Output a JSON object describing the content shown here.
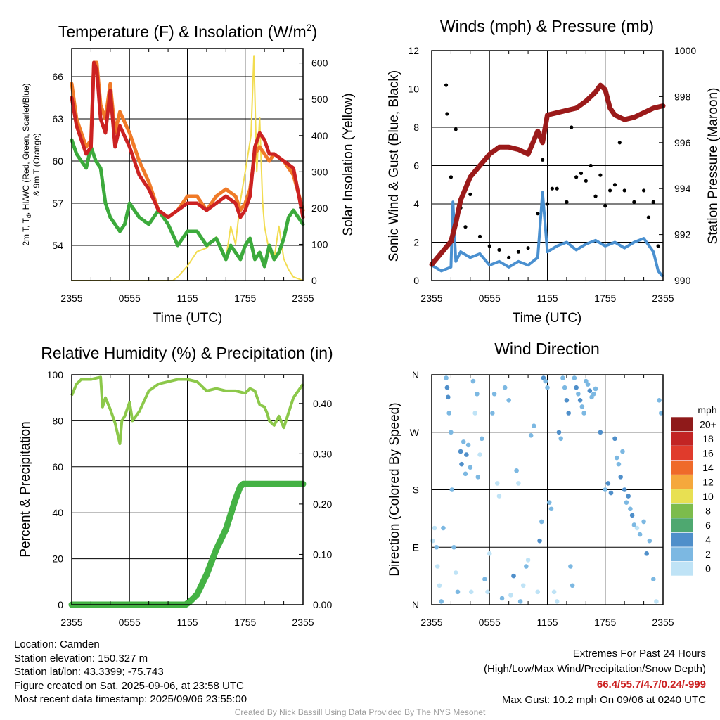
{
  "panels": {
    "temperature": {
      "title": "Temperature (F) & Insolation (W/m",
      "title_sup": "2",
      "title_end": ")",
      "ylabel_line1": "2m T, T",
      "ylabel_sub": "d",
      "ylabel_line1_end": ", HI/WC (Red, Green, Scarlet/Blue)",
      "ylabel_line2": "& 9m T (Orange)",
      "y2label": "Solar Insolation (Yellow)",
      "xlabel": "Time (UTC)"
    },
    "winds": {
      "title": "Winds (mph) & Pressure (mb)",
      "ylabel": "Sonic Wind & Gust (Blue, Black)",
      "y2label": "Station Pressure (Maroon)",
      "xlabel": "Time (UTC)"
    },
    "humidity": {
      "title": "Relative Humidity (%) & Precipitation (in)",
      "ylabel": "Percent & Precipitation"
    },
    "direction": {
      "title": "Wind Direction",
      "ylabel": "Direction (Colored By Speed)",
      "legend_title": "mph"
    }
  },
  "chart_data": [
    {
      "type": "line",
      "title": "Temperature (F) & Insolation (W/m2)",
      "xlabel": "Time (UTC)",
      "ylabel": "2m T, Td, HI/WC (Red, Green, Scarlet/Blue) & 9m T (Orange)",
      "y2label": "Solar Insolation (Yellow)",
      "x_ticks": [
        "2355",
        "0555",
        "1155",
        "1755",
        "2355"
      ],
      "y_ticks": [
        "54",
        "57",
        "60",
        "63",
        "66"
      ],
      "y2_ticks": [
        "0",
        "100",
        "200",
        "300",
        "400",
        "500",
        "600"
      ],
      "xlim_hours": [
        0,
        24
      ],
      "ylim": [
        51.5,
        68
      ],
      "y2lim": [
        0,
        640
      ],
      "grid": true,
      "series": [
        {
          "name": "2m T",
          "color": "#cc2222",
          "axis": "left",
          "hours": [
            0,
            0.5,
            1,
            1.5,
            2,
            2.3,
            2.6,
            3,
            3.5,
            4,
            4.5,
            5,
            6,
            7,
            8,
            9,
            10,
            11,
            12,
            13,
            14,
            15,
            16,
            17,
            17.5,
            18,
            18.5,
            19,
            19.5,
            20,
            20.5,
            21,
            22,
            23,
            24
          ],
          "values": [
            64.5,
            62.5,
            61.5,
            60.5,
            61,
            67,
            66.5,
            63,
            62,
            65,
            61,
            62.5,
            61,
            59,
            58,
            56.5,
            56,
            56.5,
            57,
            57,
            56.5,
            57,
            57.5,
            57,
            56,
            56.5,
            57.5,
            61,
            62,
            61.5,
            60.5,
            60.5,
            60,
            59.5,
            56
          ]
        },
        {
          "name": "9m T",
          "color": "#f07a28",
          "axis": "left",
          "hours": [
            0,
            0.5,
            1,
            1.5,
            2,
            2.3,
            2.6,
            3,
            3.5,
            4,
            4.5,
            5,
            6,
            7,
            8,
            9,
            10,
            11,
            12,
            13,
            14,
            15,
            16,
            17,
            17.5,
            18,
            18.5,
            19,
            19.5,
            20,
            20.5,
            21,
            22,
            23,
            24
          ],
          "values": [
            65.5,
            63,
            62,
            61,
            61.5,
            67,
            67,
            64,
            63,
            65.5,
            62,
            63.5,
            62,
            60,
            58.5,
            56.5,
            56,
            56.5,
            57.5,
            57.5,
            56.5,
            57.5,
            58,
            57.5,
            56.5,
            57,
            58,
            60.5,
            61,
            60.5,
            60,
            60.5,
            60,
            59,
            56.5
          ]
        },
        {
          "name": "Td",
          "color": "#3caa3c",
          "axis": "left",
          "hours": [
            0,
            0.5,
            1,
            1.5,
            2,
            2.5,
            3,
            3.5,
            4,
            4.5,
            5,
            5.5,
            6,
            6.5,
            7,
            8,
            9,
            10,
            11,
            12,
            13,
            14,
            15,
            16,
            16.5,
            17,
            17.5,
            18,
            18.5,
            19,
            19.5,
            20,
            20.5,
            21,
            21.5,
            22,
            22.5,
            23,
            24
          ],
          "values": [
            61.5,
            60.5,
            60,
            59.5,
            61,
            60,
            59.5,
            57,
            56,
            55.5,
            55,
            55.5,
            57,
            56.5,
            56,
            55.5,
            56.5,
            55.5,
            54,
            55,
            55,
            54,
            54.5,
            53,
            54,
            53.5,
            53,
            54,
            54.5,
            53,
            53.5,
            52.5,
            54,
            53,
            53.5,
            54.5,
            56,
            56.5,
            55.5
          ]
        },
        {
          "name": "Solar Insolation",
          "color": "#f2dc50",
          "axis": "right",
          "hours": [
            0,
            10.5,
            11,
            12,
            13,
            14,
            15,
            16,
            16.5,
            17,
            17.5,
            18,
            18.3,
            18.6,
            18.9,
            19.2,
            19.5,
            19.8,
            20,
            20.5,
            21,
            21.5,
            22,
            22.5,
            23,
            24
          ],
          "values": [
            0,
            0,
            10,
            40,
            80,
            90,
            120,
            60,
            150,
            100,
            220,
            300,
            350,
            400,
            620,
            300,
            450,
            220,
            150,
            80,
            60,
            150,
            60,
            30,
            10,
            0
          ]
        }
      ]
    },
    {
      "type": "line",
      "title": "Winds (mph) & Pressure (mb)",
      "xlabel": "Time (UTC)",
      "ylabel": "Sonic Wind & Gust (Blue, Black)",
      "y2label": "Station Pressure (Maroon)",
      "x_ticks": [
        "2355",
        "0555",
        "1155",
        "1755",
        "2355"
      ],
      "y_ticks": [
        "0",
        "2",
        "4",
        "6",
        "8",
        "10",
        "12"
      ],
      "y2_ticks": [
        "990",
        "992",
        "994",
        "996",
        "998",
        "1000"
      ],
      "ylim": [
        0,
        12
      ],
      "y2lim": [
        990,
        1000
      ],
      "grid": true,
      "series": [
        {
          "name": "Station Pressure",
          "color": "#9b1a1a",
          "axis": "right",
          "hours": [
            0,
            1,
            2,
            2.5,
            3,
            4,
            5,
            6,
            7,
            8,
            9,
            10,
            11,
            11.5,
            12,
            13,
            14,
            15,
            16,
            17,
            17.5,
            18,
            18.5,
            19,
            20,
            21,
            22,
            23,
            24
          ],
          "values": [
            990.7,
            991.2,
            991.7,
            992.5,
            993.5,
            994.5,
            995,
            995.5,
            995.8,
            995.8,
            995.7,
            995.5,
            996.5,
            996,
            997.2,
            997.3,
            997.4,
            997.5,
            997.8,
            998.2,
            998.5,
            998.3,
            997.5,
            997.2,
            997,
            997.1,
            997.3,
            997.5,
            997.6
          ]
        },
        {
          "name": "Sonic Wind",
          "color": "#4a90d0",
          "axis": "left",
          "hours": [
            0,
            1,
            2,
            2.2,
            2.5,
            3,
            4,
            5,
            6,
            7,
            8,
            9,
            10,
            11,
            11.5,
            12,
            13,
            14,
            15,
            16,
            17,
            18,
            19,
            20,
            21,
            22,
            23,
            23.5,
            24
          ],
          "values": [
            0.8,
            0.5,
            0.7,
            4.1,
            1,
            1.5,
            1.2,
            1.4,
            0.8,
            1,
            0.7,
            1,
            0.8,
            1.2,
            4.6,
            1.5,
            1.8,
            2,
            1.6,
            1.9,
            2.1,
            1.8,
            2,
            1.7,
            2,
            2.2,
            1.5,
            0.5,
            0.2
          ]
        },
        {
          "name": "Gust",
          "color": "#000000",
          "axis": "left",
          "style": "markers",
          "hours": [
            1.5,
            1.6,
            2.0,
            2.5,
            3.0,
            3.5,
            4.0,
            5.0,
            6.0,
            7.0,
            8.0,
            9.0,
            10.0,
            11.0,
            11.5,
            12.0,
            12.5,
            13.0,
            14.0,
            14.5,
            15.0,
            15.5,
            16.0,
            16.5,
            17.0,
            17.5,
            18.0,
            18.5,
            19.0,
            19.5,
            20.0,
            21.0,
            22.0,
            22.5,
            23.0,
            23.5
          ],
          "values": [
            10.2,
            8.7,
            5.4,
            7.9,
            3.8,
            2.8,
            4.5,
            2.3,
            1.8,
            1.6,
            1.2,
            1.5,
            1.7,
            3.5,
            6.3,
            4.0,
            4.8,
            4.8,
            4.1,
            8.0,
            5.4,
            5.6,
            5.2,
            6.0,
            4.4,
            5.5,
            3.9,
            4.7,
            5.0,
            7.2,
            4.7,
            4.1,
            4.7,
            3.3,
            4.1,
            1.8
          ]
        }
      ]
    },
    {
      "type": "line",
      "title": "Relative Humidity (%) & Precipitation (in)",
      "ylabel": "Percent & Precipitation",
      "x_ticks": [
        "2355",
        "0555",
        "1155",
        "1755",
        "2355"
      ],
      "y_ticks": [
        "0",
        "20",
        "40",
        "60",
        "80",
        "100"
      ],
      "y2_ticks": [
        "0.00",
        "0.10",
        "0.20",
        "0.30",
        "0.40"
      ],
      "ylim": [
        0,
        100
      ],
      "y2lim": [
        0,
        0.457
      ],
      "grid": true,
      "series": [
        {
          "name": "Relative Humidity",
          "color": "#8cc84a",
          "axis": "left",
          "hours": [
            0,
            0.5,
            1,
            2,
            3,
            3.2,
            3.5,
            4,
            4.5,
            5,
            5.2,
            5.5,
            6,
            6.3,
            7,
            8,
            9,
            10,
            11,
            12,
            13,
            14,
            15,
            16,
            17,
            18,
            18.5,
            19,
            19.5,
            20,
            20.3,
            20.5,
            21,
            21.5,
            22,
            23,
            24
          ],
          "values": [
            91,
            96,
            98,
            98,
            99,
            86,
            90,
            85,
            79,
            70,
            80,
            82,
            88,
            80,
            84,
            93,
            96,
            97,
            98,
            98,
            97,
            93,
            94,
            93,
            93,
            92,
            94,
            93,
            87,
            86,
            83,
            80,
            78,
            82,
            77,
            90,
            96
          ]
        },
        {
          "name": "Precipitation",
          "color": "#44b244",
          "axis": "right",
          "hours": [
            0,
            11.8,
            12.2,
            13,
            14,
            15,
            16,
            16.5,
            17,
            17.5,
            17.8,
            24
          ],
          "values": [
            0,
            0,
            0.005,
            0.02,
            0.06,
            0.11,
            0.15,
            0.18,
            0.21,
            0.235,
            0.24,
            0.24
          ]
        }
      ]
    },
    {
      "type": "scatter",
      "title": "Wind Direction",
      "ylabel": "Direction (Colored By Speed)",
      "x_ticks": [
        "2355",
        "0555",
        "1155",
        "1755",
        "2355"
      ],
      "y_ticks": [
        "N",
        "E",
        "S",
        "W",
        "N"
      ],
      "ylim_degrees": [
        0,
        360
      ],
      "legend": {
        "title": "mph",
        "labels": [
          "0",
          "2",
          "4",
          "6",
          "8",
          "10",
          "12",
          "14",
          "16",
          "18",
          "20+"
        ],
        "colors": [
          "#bfe3f6",
          "#7cb8e2",
          "#4f8fca",
          "#4ea870",
          "#7cbc4c",
          "#e8e052",
          "#f5a83c",
          "#ef6a2a",
          "#e03b2c",
          "#c22424",
          "#8f1a1a"
        ]
      },
      "speed_scale": [
        "#bfe3f6",
        "#7cb8e2",
        "#4f8fca"
      ],
      "points_hours": [
        0.1,
        0.3,
        0.5,
        0.6,
        0.8,
        1.0,
        1.2,
        1.5,
        1.6,
        1.7,
        1.8,
        2.0,
        2.1,
        2.3,
        2.5,
        2.7,
        3.0,
        3.1,
        3.3,
        3.5,
        3.6,
        3.8,
        4.0,
        4.1,
        4.3,
        4.5,
        4.7,
        4.8,
        5.0,
        5.2,
        5.5,
        5.8,
        6.0,
        6.3,
        6.5,
        6.8,
        7.0,
        7.3,
        7.6,
        8.0,
        8.2,
        8.5,
        8.8,
        9.0,
        9.2,
        9.5,
        9.8,
        10.0,
        10.3,
        10.6,
        11.0,
        11.2,
        11.4,
        11.6,
        11.8,
        12.0,
        12.2,
        12.4,
        12.7,
        13.0,
        13.2,
        13.4,
        13.6,
        13.8,
        14.0,
        14.2,
        14.4,
        14.6,
        14.8,
        15.0,
        15.2,
        15.4,
        15.6,
        15.8,
        16.0,
        16.2,
        16.4,
        16.6,
        16.8,
        17.0,
        17.5,
        18.0,
        18.3,
        18.6,
        19.0,
        19.2,
        19.4,
        19.6,
        19.8,
        20.0,
        20.2,
        20.4,
        20.6,
        20.8,
        21.0,
        21.3,
        21.6,
        22.0,
        22.3,
        22.6,
        23.0,
        23.3,
        23.6,
        23.8
      ],
      "points_degrees": [
        100,
        120,
        90,
        60,
        30,
        5,
        120,
        355,
        340,
        325,
        300,
        270,
        180,
        90,
        50,
        20,
        240,
        220,
        255,
        205,
        235,
        250,
        215,
        20,
        350,
        300,
        330,
        200,
        235,
        260,
        40,
        20,
        80,
        300,
        330,
        190,
        170,
        10,
        340,
        320,
        15,
        45,
        210,
        190,
        5,
        30,
        60,
        70,
        265,
        280,
        20,
        100,
        130,
        355,
        350,
        340,
        160,
        150,
        20,
        5,
        270,
        260,
        355,
        340,
        320,
        300,
        60,
        30,
        355,
        340,
        330,
        320,
        310,
        300,
        350,
        345,
        335,
        325,
        330,
        338,
        270,
        180,
        190,
        175,
        260,
        230,
        220,
        200,
        240,
        180,
        160,
        170,
        150,
        140,
        125,
        120,
        110,
        130,
        80,
        100,
        40,
        5,
        320,
        300
      ],
      "points_speed": [
        0,
        0,
        1,
        0,
        0,
        1,
        1,
        1,
        2,
        2,
        1,
        1,
        1,
        1,
        0,
        1,
        2,
        2,
        1,
        1,
        2,
        1,
        1,
        0,
        1,
        0,
        1,
        1,
        0,
        1,
        1,
        0,
        0,
        1,
        1,
        0,
        0,
        1,
        1,
        1,
        0,
        2,
        1,
        0,
        1,
        0,
        1,
        0,
        1,
        1,
        0,
        2,
        1,
        2,
        1,
        1,
        1,
        1,
        0,
        0,
        2,
        1,
        1,
        1,
        2,
        2,
        1,
        1,
        1,
        2,
        1,
        2,
        1,
        1,
        1,
        1,
        2,
        1,
        1,
        1,
        2,
        1,
        2,
        2,
        2,
        1,
        1,
        2,
        1,
        2,
        1,
        2,
        1,
        2,
        1,
        0,
        1,
        1,
        2,
        1,
        1,
        0,
        1,
        1
      ]
    }
  ],
  "footer": {
    "location": "Location: Camden",
    "elevation": "Station elevation: 150.327 m",
    "latlon": "Station lat/lon: 43.3399; -75.743",
    "created": "Figure created on Sat, 2025-09-06, at 23:58 UTC",
    "recent": "Most recent data timestamp: 2025/09/06 23:55:00",
    "extremes_title": "Extremes For Past 24 Hours",
    "extremes_sub": "(High/Low/Max Wind/Precipitation/Snow Depth)",
    "extremes_values": "66.4/55.7/4.7/0.24/-999",
    "max_gust": "Max Gust: 10.2 mph On 09/06 at 0240 UTC",
    "credit": "Created By Nick Bassill Using Data Provided By The NYS Mesonet",
    "extremes_color": "#cc2020"
  }
}
